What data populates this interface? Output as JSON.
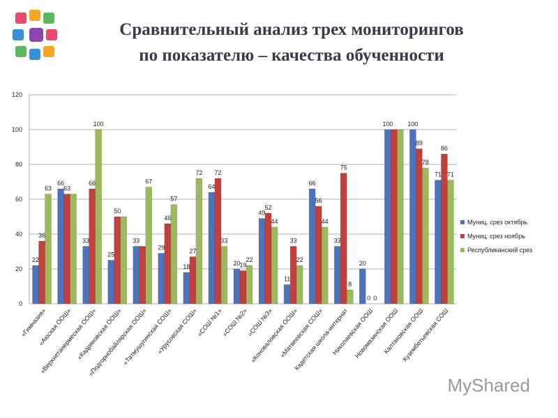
{
  "chart_data": {
    "type": "bar",
    "title": [
      "Сравнительный анализ трех мониторингов",
      "по показателю – качества обученности"
    ],
    "categories": [
      "«Гимназия»",
      "«Аюская ООШ»",
      "«Верхнетанермеская ООШ»",
      "«Кадряковская ООШ»",
      "«Подгорнобайлярская ООШ»",
      "«Татмушугинская СОШ»",
      "«Урусовская СОШ»",
      "«СОШ №1»",
      "«СОШ №2»",
      "«СОШ №3»",
      "«Коноваловская ООШ»",
      "«Матвеевская СОШ»",
      "Кадетская школа-интернат",
      "Николаевская ООШ",
      "Новомазинская ООШ",
      "Калтаковская ООШ",
      "Кузембетьевская СОШ"
    ],
    "series": [
      {
        "name": "Муниц. срез октябрь",
        "color": "#4a73c0",
        "values": [
          22,
          66,
          33,
          25,
          33,
          29,
          18,
          64,
          20,
          49,
          11,
          66,
          33,
          20,
          100,
          100,
          71
        ],
        "value_labels": [
          "22",
          "66",
          "33",
          "25",
          "33",
          "29",
          "18",
          "64",
          "20",
          "49",
          "11",
          "66",
          "33",
          "20",
          "100",
          "100",
          "71"
        ]
      },
      {
        "name": "Муниц. срез ноябрь",
        "color": "#c0403c",
        "values": [
          36,
          63,
          66,
          50,
          33,
          46,
          27,
          72,
          19,
          52,
          33,
          56,
          75,
          0,
          100,
          89,
          86
        ],
        "value_labels": [
          "36",
          "63",
          "66",
          "50",
          null,
          "46",
          "27",
          "72",
          "19",
          "52",
          "33",
          "56",
          "75",
          "0",
          null,
          "89",
          "86"
        ]
      },
      {
        "name": "Республиканский срез",
        "color": "#9bbb59",
        "values": [
          63,
          63,
          100,
          50,
          67,
          57,
          72,
          33,
          22,
          44,
          22,
          44,
          8,
          0,
          100,
          78,
          71
        ],
        "value_labels": [
          "63",
          null,
          "100",
          null,
          "67",
          "57",
          "72",
          "33",
          "22",
          "44",
          "22",
          "44",
          "8",
          "0",
          null,
          "78",
          "71"
        ]
      }
    ],
    "ylim": [
      0,
      120
    ],
    "yticks": [
      0,
      20,
      40,
      60,
      80,
      100,
      120
    ],
    "grid": true,
    "legend": "right"
  },
  "watermark": "MyShared"
}
